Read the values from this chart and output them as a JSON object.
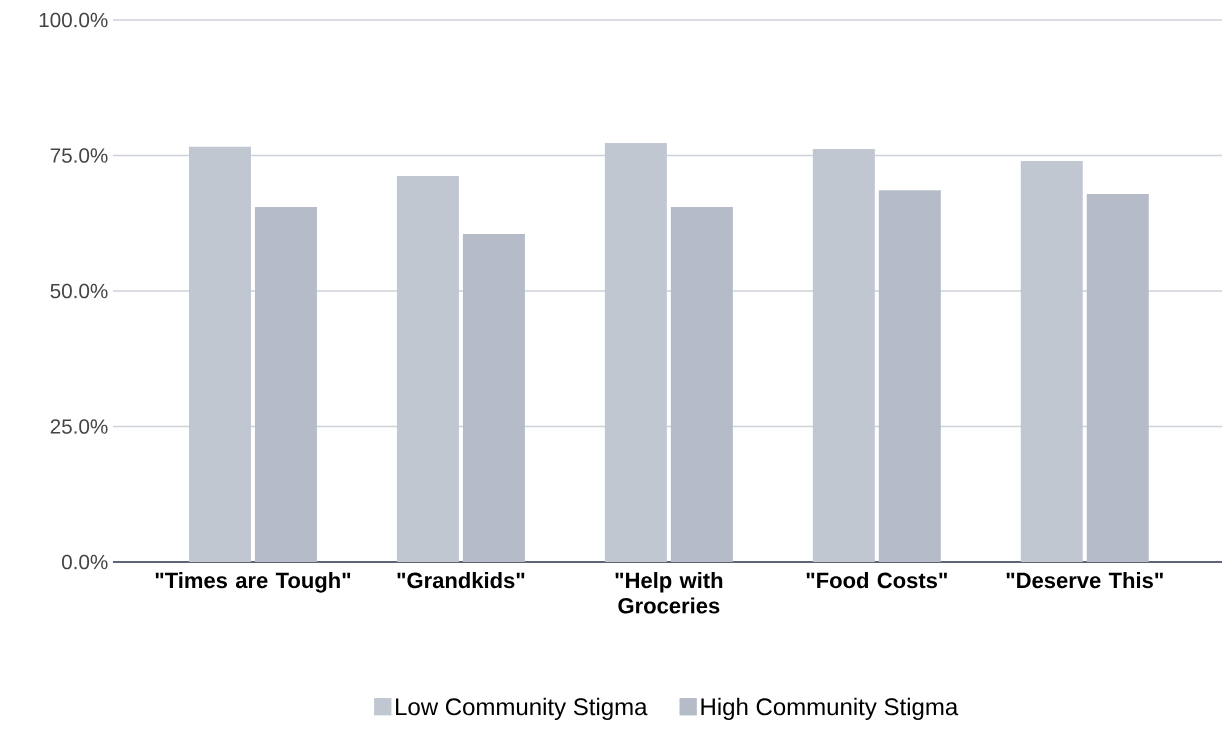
{
  "chart_data": {
    "type": "bar",
    "categories": [
      "\"Times are Tough\"",
      "\"Grandkids\"",
      "\"Help with Groceries",
      "\"Food Costs\"",
      "\"Deserve This\""
    ],
    "series": [
      {
        "name": "Low Community Stigma",
        "color": "#c0c7d1",
        "values": [
          76.6,
          71.2,
          77.3,
          76.2,
          74.0
        ]
      },
      {
        "name": "High Community Stigma",
        "color": "#b5bcc8",
        "values": [
          65.5,
          60.5,
          65.5,
          68.6,
          67.9
        ]
      }
    ],
    "ylim": [
      0,
      100
    ],
    "yticks": [
      {
        "value": 0,
        "label": "0.0%"
      },
      {
        "value": 25,
        "label": "25.0%"
      },
      {
        "value": 50,
        "label": "50.0%"
      },
      {
        "value": 75,
        "label": "75.0%"
      },
      {
        "value": 100,
        "label": "100.0%"
      }
    ],
    "grid": "y",
    "legend": "bottom"
  }
}
